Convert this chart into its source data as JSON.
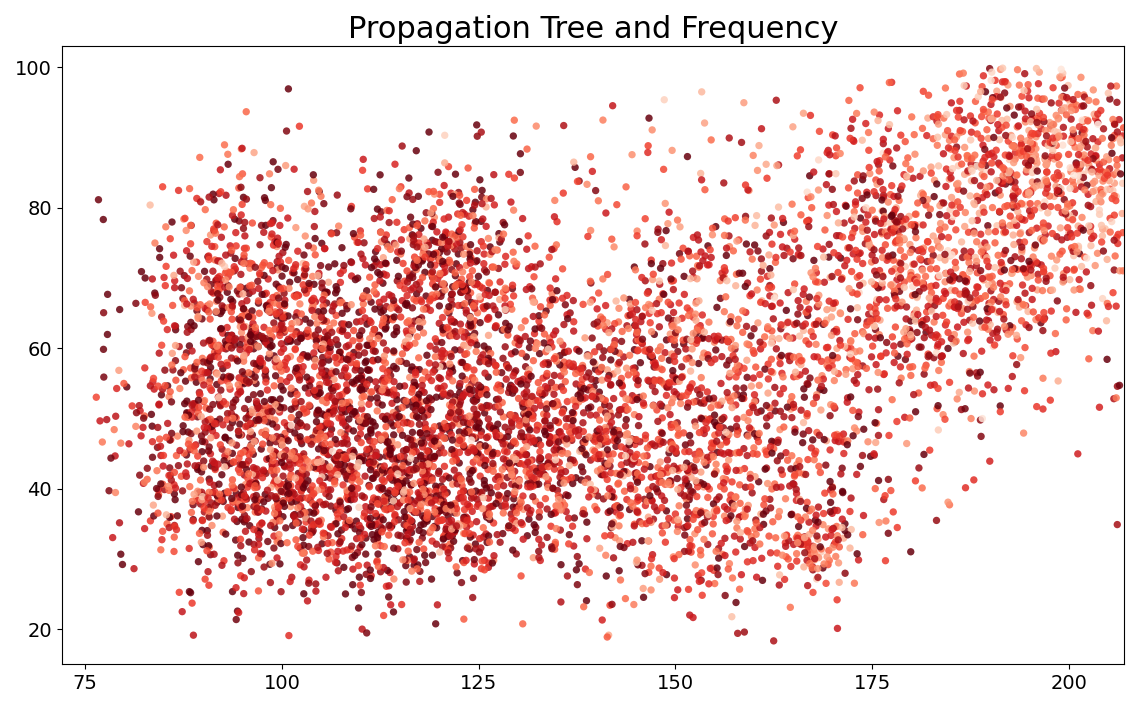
{
  "title": "Propagation Tree and Frequency",
  "title_fontsize": 22,
  "xlim": [
    72,
    207
  ],
  "ylim": [
    15,
    103
  ],
  "xticks": [
    75,
    100,
    125,
    150,
    175,
    200
  ],
  "yticks": [
    20,
    40,
    60,
    80,
    100
  ],
  "background_color": "#ffffff",
  "cmap": "Reds",
  "marker_size": 28,
  "seed": 42
}
